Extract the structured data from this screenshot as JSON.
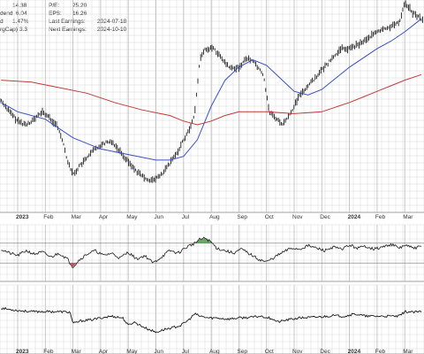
{
  "fundamentals": {
    "col1": [
      {
        "label": "",
        "value": "14.38"
      },
      {
        "label": "dend",
        "value": "6.04"
      },
      {
        "label": "d",
        "value": "1.47%"
      },
      {
        "label": "rgCap)",
        "value": "3.3"
      }
    ],
    "col2": [
      {
        "label": "P/E:",
        "value": "25.20"
      },
      {
        "label": "EPS:",
        "value": "16.26"
      },
      {
        "label": "Last Earnings:",
        "value": "2024-07-18"
      },
      {
        "label": "Next Earnings:",
        "value": "2024-10-10"
      }
    ]
  },
  "colors": {
    "price": "#1a1a1a",
    "ma_short": "#3a4fc4",
    "ma_long": "#c43a3a",
    "grid": "#d9d9d9",
    "osc_positive": "#4a9a4a",
    "osc_negative": "#c43a4a"
  },
  "chart_data": [
    {
      "type": "line",
      "panel": "price",
      "ylim": [
        0,
        100
      ],
      "x_ticks": [
        {
          "label": "2023",
          "month": 0,
          "bold": true
        },
        {
          "label": "Feb",
          "month": 1
        },
        {
          "label": "Mar",
          "month": 2
        },
        {
          "label": "Apr",
          "month": 3
        },
        {
          "label": "May",
          "month": 4
        },
        {
          "label": "Jun",
          "month": 5
        },
        {
          "label": "Jul",
          "month": 6
        },
        {
          "label": "Aug",
          "month": 7
        },
        {
          "label": "Sep",
          "month": 8
        },
        {
          "label": "Oct",
          "month": 9
        },
        {
          "label": "Nov",
          "month": 10
        },
        {
          "label": "Dec",
          "month": 11
        },
        {
          "label": "2024",
          "month": 12,
          "bold": true
        },
        {
          "label": "Feb",
          "month": 13
        },
        {
          "label": "Mar",
          "month": 14
        }
      ],
      "series": [
        {
          "key": "price",
          "x": [
            -0.6,
            -0.3,
            0.0,
            0.3,
            0.6,
            0.9,
            1.2,
            1.4,
            1.6,
            1.8,
            2.0,
            2.2,
            2.5,
            2.8,
            3.1,
            3.4,
            3.7,
            4.0,
            4.3,
            4.6,
            4.9,
            5.2,
            5.5,
            5.8,
            6.0,
            6.2,
            6.4,
            6.6,
            6.8,
            7.1,
            7.4,
            7.7,
            8.0,
            8.3,
            8.6,
            8.9,
            9.1,
            9.3,
            9.6,
            9.9,
            10.2,
            10.5,
            10.8,
            11.1,
            11.4,
            11.7,
            12.0,
            12.3,
            12.6,
            12.9,
            13.2,
            13.5,
            13.8,
            14.0,
            14.3,
            14.6
          ],
          "values": [
            53,
            47,
            42,
            40,
            43,
            47,
            43,
            40,
            33,
            21,
            13,
            17,
            22,
            27,
            30,
            31,
            26,
            20,
            15,
            11,
            10,
            13,
            19,
            26,
            32,
            37,
            46,
            76,
            81,
            81,
            75,
            70,
            71,
            76,
            73,
            66,
            47,
            44,
            40,
            47,
            56,
            61,
            66,
            71,
            76,
            81,
            81,
            83,
            86,
            89,
            91,
            93,
            95,
            106,
            100,
            97
          ]
        },
        {
          "key": "ma_short",
          "x": [
            -0.6,
            0.0,
            1.0,
            2.0,
            3.0,
            4.0,
            5.0,
            5.5,
            6.0,
            6.5,
            7.0,
            7.5,
            8.0,
            8.5,
            9.0,
            9.5,
            10.0,
            10.5,
            11.0,
            11.5,
            12.0,
            12.5,
            13.0,
            13.5,
            14.0,
            14.6
          ],
          "values": [
            52,
            47,
            43,
            33,
            27,
            24,
            21,
            21,
            23,
            32,
            50,
            64,
            71,
            75,
            72,
            65,
            58,
            56,
            59,
            65,
            71,
            76,
            81,
            85,
            90,
            97
          ]
        },
        {
          "key": "ma_long",
          "x": [
            -0.6,
            0.5,
            1.5,
            2.5,
            3.5,
            4.5,
            5.5,
            6.0,
            6.5,
            7.0,
            7.5,
            8.0,
            9.0,
            10.0,
            11.0,
            12.0,
            12.5,
            13.0,
            13.5,
            14.0,
            14.6
          ],
          "values": [
            64,
            63,
            60,
            57,
            52,
            48,
            45,
            42,
            40,
            42,
            45,
            47,
            47,
            46,
            47,
            52,
            55,
            58,
            61,
            64,
            67
          ]
        }
      ]
    },
    {
      "type": "area",
      "panel": "oscillator",
      "ylim": [
        0,
        100
      ],
      "reference_levels": [
        70,
        30
      ],
      "series": [
        {
          "key": "osc",
          "x": [
            -0.6,
            -0.3,
            0.0,
            0.3,
            0.6,
            0.9,
            1.2,
            1.5,
            1.8,
            2.0,
            2.2,
            2.5,
            2.8,
            3.1,
            3.4,
            3.7,
            4.0,
            4.3,
            4.6,
            4.9,
            5.2,
            5.5,
            5.8,
            6.0,
            6.2,
            6.4,
            6.6,
            6.8,
            7.0,
            7.2,
            7.5,
            7.8,
            8.1,
            8.4,
            8.7,
            9.0,
            9.3,
            9.6,
            9.9,
            10.2,
            10.5,
            10.8,
            11.1,
            11.4,
            11.7,
            12.0,
            12.3,
            12.6,
            12.9,
            13.2,
            13.5,
            13.8,
            14.0,
            14.3,
            14.6
          ],
          "values": [
            58,
            50,
            45,
            55,
            48,
            52,
            42,
            50,
            38,
            22,
            35,
            48,
            55,
            45,
            50,
            40,
            52,
            38,
            45,
            30,
            42,
            55,
            50,
            58,
            65,
            70,
            78,
            80,
            72,
            60,
            55,
            50,
            58,
            48,
            38,
            32,
            42,
            52,
            60,
            58,
            65,
            60,
            55,
            62,
            58,
            66,
            60,
            64,
            58,
            62,
            68,
            60,
            66,
            60,
            63
          ]
        }
      ]
    },
    {
      "type": "line",
      "panel": "relative",
      "ylim": [
        0,
        100
      ],
      "series": [
        {
          "key": "rel",
          "x": [
            -0.6,
            -0.3,
            0.0,
            0.5,
            1.0,
            1.5,
            1.9,
            2.0,
            2.3,
            2.7,
            3.0,
            3.4,
            3.8,
            4.0,
            4.2,
            4.6,
            5.0,
            5.3,
            5.6,
            5.9,
            6.2,
            6.4,
            6.6,
            6.9,
            7.2,
            7.6,
            8.0,
            8.4,
            8.8,
            9.2,
            9.4,
            9.8,
            10.2,
            10.6,
            11.0,
            11.4,
            11.8,
            12.2,
            12.6,
            13.0,
            13.4,
            13.8,
            14.0,
            14.3,
            14.6
          ],
          "values": [
            72,
            70,
            68,
            66,
            66,
            66,
            65,
            45,
            50,
            52,
            55,
            58,
            55,
            42,
            48,
            38,
            30,
            35,
            38,
            42,
            52,
            62,
            58,
            55,
            55,
            53,
            55,
            56,
            58,
            54,
            48,
            52,
            55,
            56,
            57,
            59,
            58,
            62,
            58,
            58,
            58,
            58,
            66,
            65,
            66
          ]
        }
      ]
    }
  ]
}
